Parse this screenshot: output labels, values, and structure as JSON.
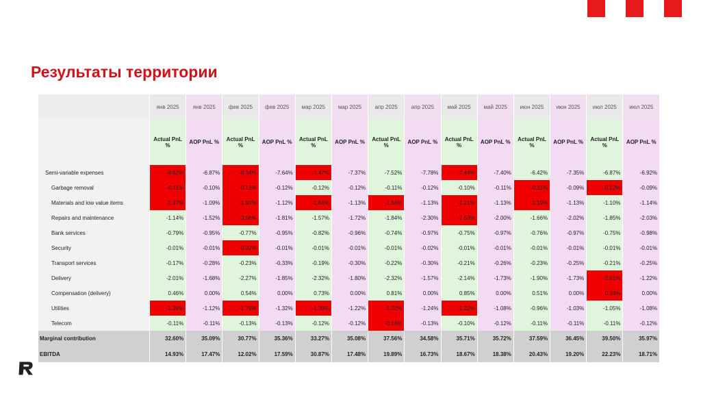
{
  "header": {
    "title": "Результаты территории"
  },
  "table": {
    "months": [
      "янв 2025",
      "янв 2025",
      "фев 2025",
      "фев 2025",
      "мар 2025",
      "мар 2025",
      "апр 2025",
      "апр 2025",
      "май 2025",
      "май 2025",
      "июн 2025",
      "июн 2025",
      "июл 2025",
      "июл 2025"
    ],
    "measures": [
      "Actual PnL %",
      "AOP PnL %",
      "Actual PnL %",
      "AOP PnL %",
      "Actual PnL %",
      "AOP PnL %",
      "Actual PnL %",
      "AOP PnL %",
      "Actual PnL %",
      "AOP PnL %",
      "Actual PnL %",
      "AOP PnL %",
      "Actual PnL %",
      "AOP PnL %"
    ],
    "rows": [
      {
        "label": "Semi-variable expenses",
        "cells": [
          "-6.62%",
          "-6.87%",
          "-9.34%",
          "-7.64%",
          "-7.47%",
          "-7.37%",
          "-7.52%",
          "-7.78%",
          "-7.44%",
          "-7.40%",
          "-6.42%",
          "-7.35%",
          "-6.87%",
          "-6.92%"
        ],
        "highlight": [
          0,
          2,
          4,
          8
        ]
      },
      {
        "label": "Garbage removal",
        "cells": [
          "-0.11%",
          "-0.10%",
          "-0.13%",
          "-0.12%",
          "-0.12%",
          "-0.12%",
          "-0.11%",
          "-0.12%",
          "-0.10%",
          "-0.11%",
          "-0.11%",
          "-0.09%",
          "-0.12%",
          "-0.09%"
        ],
        "highlight": [
          0,
          2,
          10,
          12
        ]
      },
      {
        "label": "Materials and low value items",
        "cells": [
          "-1.37%",
          "-1.09%",
          "-1.50%",
          "-1.12%",
          "-1.66%",
          "-1.13%",
          "-1.64%",
          "-1.13%",
          "-1.21%",
          "-1.13%",
          "-1.19%",
          "-1.13%",
          "-1.10%",
          "-1.14%"
        ],
        "highlight": [
          0,
          2,
          4,
          6,
          8,
          10
        ]
      },
      {
        "label": "Repairs and maintenance",
        "cells": [
          "-1.14%",
          "-1.52%",
          "-3.06%",
          "-1.81%",
          "-1.57%",
          "-1.72%",
          "-1.84%",
          "-2.30%",
          "-2.53%",
          "-2.00%",
          "-1.66%",
          "-2.02%",
          "-1.85%",
          "-2.03%"
        ],
        "highlight": [
          2,
          8
        ]
      },
      {
        "label": "Bank services",
        "cells": [
          "-0.79%",
          "-0.95%",
          "-0.77%",
          "-0.95%",
          "-0.82%",
          "-0.96%",
          "-0.74%",
          "-0.97%",
          "-0.75%",
          "-0.97%",
          "-0.76%",
          "-0.97%",
          "-0.75%",
          "-0.98%"
        ],
        "highlight": []
      },
      {
        "label": "Security",
        "cells": [
          "-0.01%",
          "-0.01%",
          "-0.02%",
          "-0.01%",
          "-0.01%",
          "-0.01%",
          "-0.01%",
          "-0.02%",
          "-0.01%",
          "-0.01%",
          "-0.01%",
          "-0.01%",
          "-0.01%",
          "-0.01%"
        ],
        "highlight": [
          2
        ]
      },
      {
        "label": "Transport services",
        "cells": [
          "-0.17%",
          "-0.28%",
          "-0.23%",
          "-0.33%",
          "-0.19%",
          "-0.30%",
          "-0.22%",
          "-0.30%",
          "-0.21%",
          "-0.26%",
          "-0.23%",
          "-0.25%",
          "-0.21%",
          "-0.25%"
        ],
        "highlight": []
      },
      {
        "label": "Delivery",
        "cells": [
          "-2.01%",
          "-1.68%",
          "-2.27%",
          "-1.85%",
          "-2.32%",
          "-1.80%",
          "-2.32%",
          "-1.57%",
          "-2.14%",
          "-1.73%",
          "-1.90%",
          "-1.73%",
          "-2.01%",
          "-1.22%"
        ],
        "highlight": [
          12
        ]
      },
      {
        "label": "Compensation (delivery)",
        "cells": [
          "0.46%",
          "0.00%",
          "0.54%",
          "0.00%",
          "0.73%",
          "0.00%",
          "0.81%",
          "0.00%",
          "0.85%",
          "0.00%",
          "0.51%",
          "0.00%",
          "0.34%",
          "0.00%"
        ],
        "highlight": [
          12
        ]
      },
      {
        "label": "Utilities",
        "cells": [
          "-1.36%",
          "-1.12%",
          "-1.76%",
          "-1.32%",
          "-1.39%",
          "-1.22%",
          "-1.32%",
          "-1.24%",
          "-1.22%",
          "-1.08%",
          "-0.96%",
          "-1.03%",
          "-1.05%",
          "-1.08%"
        ],
        "highlight": [
          0,
          2,
          4,
          6,
          8
        ]
      },
      {
        "label": "Telecom",
        "cells": [
          "-0.11%",
          "-0.11%",
          "-0.13%",
          "-0.13%",
          "-0.12%",
          "-0.12%",
          "-0.14%",
          "-0.13%",
          "-0.10%",
          "-0.12%",
          "-0.11%",
          "-0.11%",
          "-0.11%",
          "-0.12%"
        ],
        "highlight": [
          6
        ]
      }
    ],
    "totals": [
      {
        "label": "Marginal contribution",
        "cells": [
          "32.60%",
          "35.09%",
          "30.77%",
          "35.36%",
          "33.27%",
          "35.08%",
          "37.56%",
          "34.58%",
          "35.71%",
          "35.72%",
          "37.59%",
          "36.45%",
          "39.50%",
          "35.97%"
        ]
      },
      {
        "label": "EBITDA",
        "cells": [
          "14.93%",
          "17.47%",
          "12.02%",
          "17.59%",
          "30.87%",
          "17.48%",
          "19.89%",
          "16.73%",
          "18.67%",
          "18.38%",
          "20.43%",
          "19.20%",
          "22.23%",
          "18.71%"
        ]
      }
    ]
  }
}
